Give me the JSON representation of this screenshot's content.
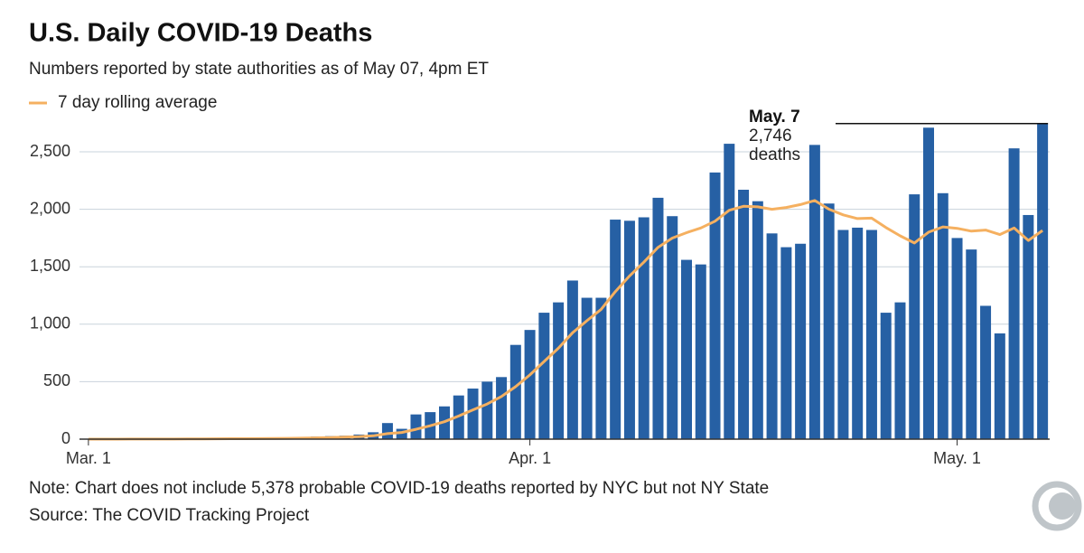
{
  "chart_data": {
    "type": "bar",
    "title": "U.S. Daily COVID-19 Deaths",
    "subtitle": "Numbers reported by state authorities as of May 07, 4pm ET",
    "notes": [
      "Note: Chart does not include 5,378 probable COVID-19 deaths reported by NYC but not NY State",
      "Source: The COVID Tracking Project"
    ],
    "annotation": {
      "date": "May. 7",
      "value": "2,746",
      "unit": "deaths"
    },
    "categories": [
      "Mar. 1",
      null,
      null,
      null,
      null,
      null,
      null,
      null,
      null,
      null,
      null,
      null,
      null,
      null,
      null,
      null,
      null,
      null,
      null,
      null,
      null,
      null,
      null,
      null,
      null,
      null,
      null,
      null,
      null,
      null,
      null,
      "Apr. 1",
      null,
      null,
      null,
      null,
      null,
      null,
      null,
      null,
      null,
      null,
      null,
      null,
      null,
      null,
      null,
      null,
      null,
      null,
      null,
      null,
      null,
      null,
      null,
      null,
      null,
      null,
      null,
      null,
      null,
      "May. 1",
      null,
      null,
      null,
      null,
      null,
      null
    ],
    "series": [
      {
        "type": "bar",
        "color": "#2660a4",
        "values": [
          0,
          0,
          1,
          1,
          2,
          2,
          3,
          3,
          4,
          5,
          6,
          6,
          8,
          10,
          12,
          16,
          22,
          26,
          30,
          40,
          60,
          140,
          90,
          215,
          235,
          285,
          380,
          440,
          500,
          540,
          820,
          950,
          1100,
          1190,
          1380,
          1230,
          1230,
          1910,
          1900,
          1930,
          2100,
          1940,
          1560,
          1520,
          2320,
          2570,
          2170,
          2070,
          1790,
          1670,
          1700,
          2560,
          2050,
          1820,
          1840,
          1820,
          1100,
          1190,
          2130,
          2710,
          2140,
          1750,
          1650,
          1160,
          920,
          2530,
          1950,
          2746
        ]
      },
      {
        "type": "line",
        "name": "7 day rolling average",
        "color": "#f5b060",
        "values": [
          0,
          0,
          0,
          1,
          1,
          1,
          1,
          2,
          2,
          3,
          4,
          4,
          5,
          6,
          7,
          9,
          11,
          14,
          18,
          22,
          29,
          48,
          58,
          86,
          116,
          152,
          201,
          255,
          306,
          371,
          457,
          559,
          676,
          791,
          926,
          1030,
          1129,
          1284,
          1420,
          1539,
          1669,
          1749,
          1796,
          1837,
          1896,
          1991,
          2026,
          2021,
          2000,
          2016,
          2041,
          2076,
          2001,
          1951,
          1919,
          1923,
          1841,
          1769,
          1707,
          1801,
          1847,
          1834,
          1810,
          1819,
          1780,
          1837,
          1729,
          1815
        ]
      }
    ],
    "ylim": [
      0,
      2800
    ],
    "yticks": [
      0,
      500,
      {
        "value": 1000,
        "label": "1,000"
      },
      {
        "value": 1500,
        "label": "1,500"
      },
      {
        "value": 2000,
        "label": "2,000"
      },
      {
        "value": 2500,
        "label": "2,500"
      }
    ],
    "grid": true
  }
}
